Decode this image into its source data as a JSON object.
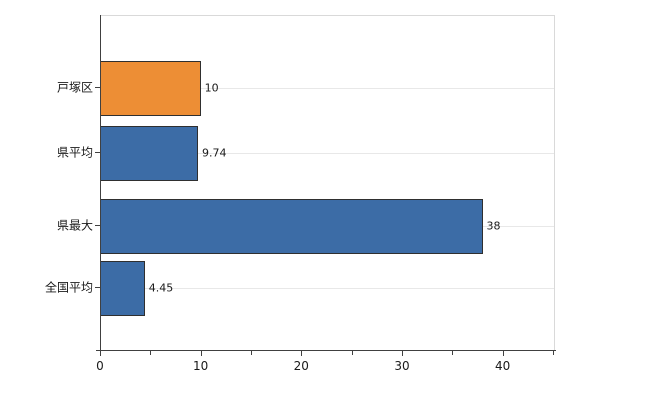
{
  "chart_data": {
    "type": "bar",
    "orientation": "horizontal",
    "title": "",
    "xlabel": "",
    "ylabel": "",
    "categories": [
      "戸塚区",
      "県平均",
      "県最大",
      "全国平均"
    ],
    "values": [
      10,
      9.74,
      38,
      4.45
    ],
    "value_labels": [
      "10",
      "9.74",
      "38",
      "4.45"
    ],
    "bar_colors": [
      "#ED8E35",
      "#3C6CA6",
      "#3C6CA6",
      "#3C6CA6"
    ],
    "xlim": [
      0,
      45.2
    ],
    "x_ticks": [
      0,
      10,
      20,
      30,
      40
    ],
    "x_minor_ticks": [
      5,
      15,
      25,
      35,
      45
    ],
    "grid": "horizontal",
    "legend": "none"
  }
}
